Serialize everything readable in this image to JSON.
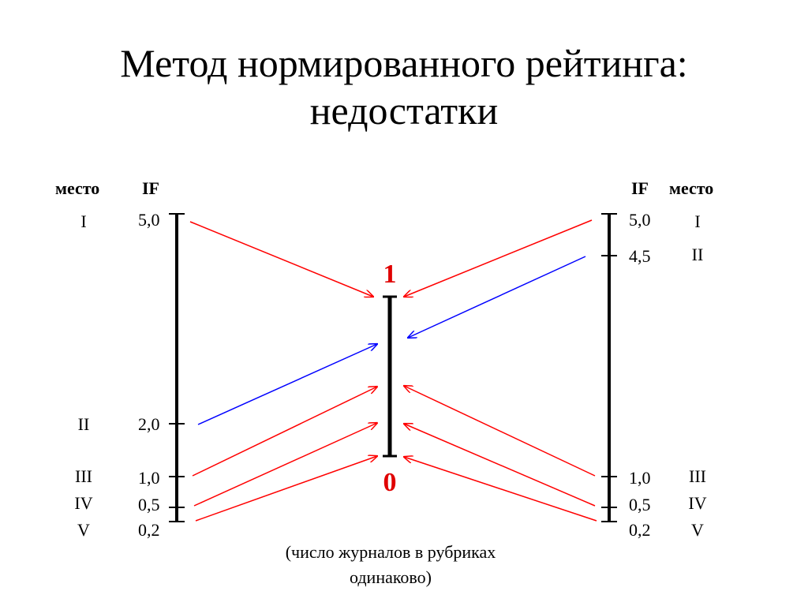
{
  "title": {
    "line1": "Метод нормированного рейтинга:",
    "line2": "недостатки"
  },
  "left_scale": {
    "header_place": "место",
    "header_if": "IF",
    "ticks": [
      {
        "place": "I",
        "value": "5,0",
        "if": 5.0
      },
      {
        "place": "II",
        "value": "2,0",
        "if": 2.0
      },
      {
        "place": "III",
        "value": "1,0",
        "if": 1.0
      },
      {
        "place": "IV",
        "value": "0,5",
        "if": 0.5
      },
      {
        "place": "V",
        "value": "0,2",
        "if": 0.2
      }
    ]
  },
  "right_scale": {
    "header_if": "IF",
    "header_place": "место",
    "ticks": [
      {
        "place": "I",
        "value": "5,0",
        "if": 5.0
      },
      {
        "place": "II",
        "value": "4,5",
        "if": 4.5
      },
      {
        "place": "III",
        "value": "1,0",
        "if": 1.0
      },
      {
        "place": "IV",
        "value": "0,5",
        "if": 0.5
      },
      {
        "place": "V",
        "value": "0,2",
        "if": 0.2
      }
    ]
  },
  "normalized_scale": {
    "top_label": "1",
    "bottom_label": "0"
  },
  "note": {
    "line1": "(число журналов в рубриках",
    "line2": "одинаково)"
  },
  "colors": {
    "arrow_red": "#ff0000",
    "arrow_blue": "#0000ff",
    "scale_label_red": "#e00000",
    "axis": "#000000"
  }
}
